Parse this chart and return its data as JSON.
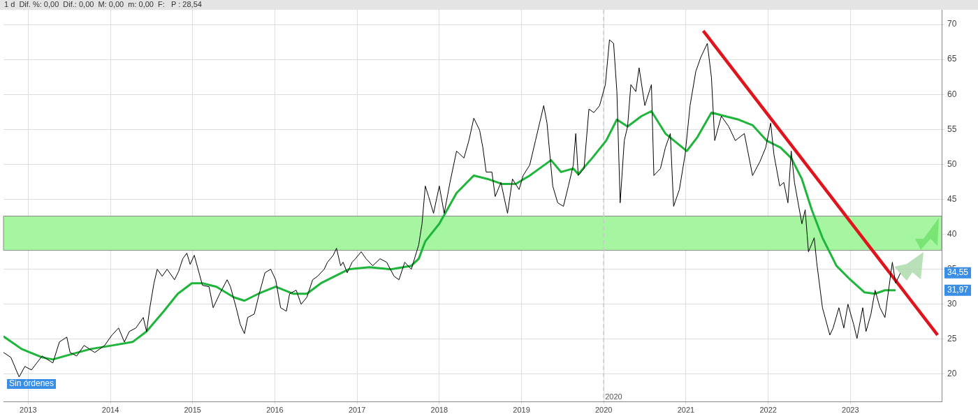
{
  "chart_data": {
    "type": "line",
    "title": "1 d  Dif. %: 0,00  Dif.: 0,00  M: 0,00  m: 0,00  F:   P : 28,54",
    "xlim": [
      2012.7,
      2024.11
    ],
    "xticks": [
      2013,
      2014,
      2015,
      2016,
      2017,
      2018,
      2019,
      2020,
      2021,
      2022,
      2023
    ],
    "ylim": [
      16.1,
      72.1
    ],
    "yticks": [
      20,
      25,
      30,
      35,
      40,
      45,
      50,
      55,
      60,
      65,
      70
    ],
    "grid": true,
    "legend": false,
    "marker": "none",
    "series": [
      {
        "color": "#000000",
        "x": [
          2012.7,
          2012.79,
          2012.89,
          2012.96,
          2013.04,
          2013.17,
          2013.3,
          2013.38,
          2013.47,
          2013.51,
          2013.59,
          2013.68,
          2013.81,
          2013.93,
          2014.02,
          2014.1,
          2014.17,
          2014.23,
          2014.31,
          2014.4,
          2014.44,
          2014.48,
          2014.53,
          2014.57,
          2014.63,
          2014.69,
          2014.78,
          2014.83,
          2014.88,
          2014.93,
          2014.97,
          2015.02,
          2015.12,
          2015.2,
          2015.25,
          2015.33,
          2015.42,
          2015.46,
          2015.53,
          2015.58,
          2015.63,
          2015.67,
          2015.75,
          2015.81,
          2015.88,
          2015.95,
          2016.01,
          2016.07,
          2016.14,
          2016.18,
          2016.26,
          2016.32,
          2016.39,
          2016.46,
          2016.52,
          2016.6,
          2016.64,
          2016.71,
          2016.75,
          2016.8,
          2016.83,
          2016.88,
          2016.94,
          2016.98,
          2017.05,
          2017.11,
          2017.19,
          2017.28,
          2017.36,
          2017.45,
          2017.51,
          2017.58,
          2017.66,
          2017.75,
          2017.79,
          2017.83,
          2017.87,
          2017.93,
          2018.0,
          2018.06,
          2018.13,
          2018.21,
          2018.3,
          2018.36,
          2018.42,
          2018.49,
          2018.53,
          2018.57,
          2018.64,
          2018.68,
          2018.75,
          2018.83,
          2018.89,
          2018.97,
          2019.02,
          2019.1,
          2019.17,
          2019.27,
          2019.31,
          2019.38,
          2019.44,
          2019.51,
          2019.57,
          2019.63,
          2019.66,
          2019.69,
          2019.76,
          2019.82,
          2019.88,
          2019.95,
          2020.02,
          2020.07,
          2020.12,
          2020.16,
          2020.2,
          2020.25,
          2020.29,
          2020.33,
          2020.39,
          2020.43,
          2020.5,
          2020.58,
          2020.61,
          2020.69,
          2020.75,
          2020.81,
          2020.85,
          2020.92,
          2020.99,
          2021.05,
          2021.12,
          2021.18,
          2021.26,
          2021.31,
          2021.35,
          2021.43,
          2021.52,
          2021.6,
          2021.71,
          2021.81,
          2021.9,
          2021.97,
          2022.03,
          2022.07,
          2022.14,
          2022.19,
          2022.24,
          2022.28,
          2022.32,
          2022.41,
          2022.45,
          2022.49,
          2022.56,
          2022.59,
          2022.66,
          2022.75,
          2022.79,
          2022.86,
          2022.92,
          2022.97,
          2023.04,
          2023.08,
          2023.15,
          2023.19,
          2023.25,
          2023.3,
          2023.36,
          2023.42,
          2023.47,
          2023.51,
          2023.55,
          2023.61
        ],
        "values": [
          23.1,
          22.4,
          19.6,
          21.1,
          20.6,
          22.6,
          21.6,
          24.6,
          25.3,
          23.1,
          22.6,
          24.1,
          23.1,
          24.1,
          25.6,
          26.6,
          24.6,
          26.1,
          26.6,
          28.1,
          26.1,
          29.5,
          33.0,
          35.0,
          34.0,
          35.0,
          33.5,
          34.7,
          36.5,
          37.3,
          35.7,
          37.0,
          32.7,
          32.5,
          29.5,
          31.5,
          33.5,
          32.5,
          29.5,
          27.1,
          25.8,
          28.1,
          28.6,
          31.5,
          34.5,
          35.0,
          33.5,
          29.5,
          29.0,
          31.5,
          32.0,
          30.0,
          31.0,
          33.5,
          34.0,
          35.0,
          36.0,
          37.0,
          38.0,
          35.5,
          36.0,
          34.5,
          36.0,
          36.5,
          37.5,
          36.5,
          35.5,
          36.5,
          36.0,
          34.0,
          33.5,
          36.0,
          35.0,
          38.5,
          41.5,
          46.9,
          45.4,
          43.0,
          46.9,
          43.0,
          47.4,
          51.9,
          50.9,
          53.4,
          56.6,
          54.9,
          52.4,
          48.9,
          48.9,
          45.4,
          47.4,
          43.0,
          47.9,
          46.4,
          48.4,
          49.9,
          53.4,
          58.4,
          55.9,
          46.9,
          44.5,
          44.0,
          46.9,
          49.9,
          54.4,
          48.4,
          49.4,
          57.9,
          57.4,
          58.4,
          61.4,
          67.8,
          67.3,
          60.4,
          44.5,
          53.4,
          55.4,
          61.4,
          60.4,
          63.8,
          58.4,
          61.4,
          48.4,
          49.4,
          52.4,
          54.4,
          44.0,
          46.4,
          51.4,
          58.4,
          63.3,
          65.3,
          67.3,
          62.4,
          53.4,
          56.9,
          55.4,
          53.4,
          54.4,
          48.4,
          50.4,
          52.4,
          55.9,
          51.4,
          46.9,
          47.4,
          44.5,
          51.9,
          47.4,
          41.5,
          43.5,
          37.5,
          39.5,
          36.0,
          29.5,
          25.6,
          26.6,
          29.5,
          26.6,
          30.0,
          27.1,
          25.1,
          29.5,
          26.1,
          28.6,
          32.0,
          29.5,
          28.1,
          32.5,
          36.0,
          33.0,
          34.5
        ]
      },
      {
        "color": "#1db53a",
        "x": [
          2012.7,
          2012.92,
          2013.17,
          2013.3,
          2013.51,
          2013.76,
          2014.02,
          2014.27,
          2014.44,
          2014.65,
          2014.82,
          2014.99,
          2015.12,
          2015.29,
          2015.5,
          2015.63,
          2015.8,
          2016.01,
          2016.22,
          2016.39,
          2016.56,
          2016.73,
          2016.9,
          2017.15,
          2017.41,
          2017.66,
          2017.75,
          2017.83,
          2018.0,
          2018.21,
          2018.42,
          2018.59,
          2018.76,
          2018.93,
          2019.1,
          2019.36,
          2019.48,
          2019.63,
          2019.69,
          2019.86,
          2020.03,
          2020.16,
          2020.29,
          2020.46,
          2020.58,
          2020.75,
          2021.01,
          2021.14,
          2021.31,
          2021.47,
          2021.64,
          2021.81,
          2021.98,
          2022.15,
          2022.28,
          2022.41,
          2022.53,
          2022.66,
          2022.83,
          2023.0,
          2023.17,
          2023.3,
          2023.42,
          2023.55
        ],
        "values": [
          25.4,
          23.6,
          22.4,
          22.1,
          22.8,
          23.6,
          24.1,
          24.6,
          26.1,
          29.0,
          31.5,
          33.0,
          33.0,
          32.5,
          31.0,
          30.5,
          31.5,
          32.5,
          31.5,
          31.5,
          33.0,
          34.0,
          35.0,
          35.3,
          35.0,
          35.5,
          36.5,
          39.0,
          41.5,
          45.9,
          48.4,
          47.9,
          47.2,
          47.2,
          48.4,
          50.6,
          48.9,
          49.4,
          48.6,
          50.9,
          53.4,
          56.4,
          55.4,
          56.9,
          57.6,
          54.4,
          51.9,
          53.9,
          57.4,
          56.9,
          56.4,
          55.6,
          53.4,
          52.4,
          50.9,
          47.9,
          43.5,
          39.5,
          35.5,
          33.5,
          31.7,
          31.5,
          32.0,
          32.0
        ]
      },
      {
        "color": "#e0141c",
        "x": [
          2021.21,
          2024.06
        ],
        "values": [
          69.1,
          25.6
        ]
      }
    ],
    "bands": [
      {
        "axis": "y",
        "from": 37.7,
        "to": 42.6,
        "color": "#a6f5a0"
      }
    ],
    "ref_lines": [
      {
        "axis": "x",
        "value": 2020,
        "label": "2020",
        "line_style": "dashed",
        "color": "#c8c8c8"
      }
    ],
    "annotations": [
      "Sin órdenes",
      "34,55",
      "31,97"
    ]
  }
}
